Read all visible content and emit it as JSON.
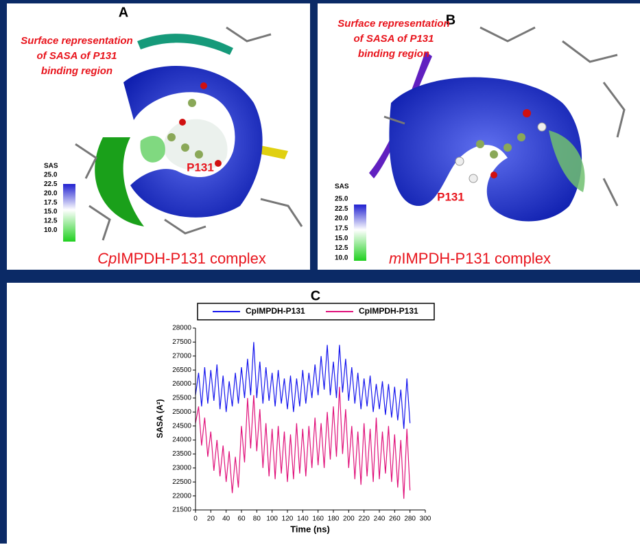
{
  "figure": {
    "panels": [
      {
        "letter": "A",
        "annotation": [
          "Surface representation",
          "of SASA of P131",
          "binding region"
        ],
        "ligand": "P131",
        "colorbar_title": "SAS",
        "colorbar_ticks": [
          "25.0",
          "22.5",
          "20.0",
          "17.5",
          "15.0",
          "12.5",
          "10.0"
        ],
        "complex_prefix": "Cp",
        "complex_suffix": "IMPDH-P131 complex"
      },
      {
        "letter": "B",
        "annotation": [
          "Surface representation",
          "of SASA of P131",
          "binding region"
        ],
        "ligand": "P131",
        "colorbar_title": "SAS",
        "colorbar_ticks": [
          "25.0",
          "22.5",
          "20.0",
          "17.5",
          "15.0",
          "12.5",
          "10.0"
        ],
        "complex_prefix": "m",
        "complex_suffix": "IMPDH-P131 complex"
      }
    ],
    "chart_letter": "C"
  },
  "chart_data": {
    "type": "line",
    "xlabel": "Time (ns)",
    "ylabel": "SASA (A²)",
    "xlim": [
      0,
      300
    ],
    "xticks": [
      0,
      20,
      40,
      60,
      80,
      100,
      120,
      140,
      160,
      180,
      200,
      220,
      240,
      260,
      280,
      300
    ],
    "ylim": [
      21500,
      28000
    ],
    "yticks": [
      21500,
      22000,
      22500,
      23000,
      23500,
      24000,
      24500,
      25000,
      25500,
      26000,
      26500,
      27000,
      27500,
      28000
    ],
    "x": [
      0,
      4,
      8,
      12,
      16,
      20,
      24,
      28,
      32,
      36,
      40,
      44,
      48,
      52,
      56,
      60,
      64,
      68,
      72,
      76,
      80,
      84,
      88,
      92,
      96,
      100,
      104,
      108,
      112,
      116,
      120,
      124,
      128,
      132,
      136,
      140,
      144,
      148,
      152,
      156,
      160,
      164,
      168,
      172,
      176,
      180,
      184,
      188,
      192,
      196,
      200,
      204,
      208,
      212,
      216,
      220,
      224,
      228,
      232,
      236,
      240,
      244,
      248,
      252,
      256,
      260,
      264,
      268,
      272,
      276,
      280
    ],
    "series": [
      {
        "name": "CpIMPDH-P131",
        "color": "#1414ee",
        "values": [
          25600,
          26400,
          25200,
          26600,
          25300,
          26500,
          25400,
          26700,
          25100,
          26300,
          25000,
          26100,
          25200,
          26400,
          25300,
          26600,
          25500,
          26900,
          25600,
          27500,
          25500,
          26800,
          25300,
          26600,
          25400,
          26400,
          25200,
          26500,
          25300,
          26200,
          25100,
          26300,
          25000,
          26200,
          25200,
          26500,
          25300,
          26400,
          25500,
          26700,
          25600,
          27000,
          25800,
          27400,
          25600,
          26800,
          25500,
          27400,
          25700,
          26900,
          25400,
          26600,
          25300,
          26400,
          25100,
          26200,
          25200,
          26300,
          25000,
          26000,
          25100,
          26100,
          24900,
          26000,
          24800,
          25900,
          24700,
          25800,
          24400,
          26200,
          24600
        ]
      },
      {
        "name": "CpIMPDH-P131",
        "color": "#e0107a",
        "values": [
          24600,
          25200,
          23800,
          24800,
          23400,
          24300,
          22900,
          24000,
          22700,
          23800,
          22500,
          23600,
          22100,
          23400,
          22300,
          24500,
          23200,
          25500,
          23700,
          25600,
          23600,
          25100,
          23000,
          24600,
          22700,
          24400,
          22600,
          24500,
          22800,
          24300,
          22500,
          24200,
          22600,
          24600,
          22800,
          24400,
          22700,
          24500,
          23000,
          24800,
          23100,
          24600,
          23000,
          25000,
          23300,
          25200,
          23400,
          25900,
          23500,
          25100,
          23000,
          24500,
          22600,
          24300,
          22400,
          24600,
          22700,
          24400,
          22500,
          24800,
          22600,
          24300,
          22800,
          24500,
          22500,
          24200,
          22300,
          24000,
          21900,
          24400,
          22200
        ]
      }
    ]
  }
}
